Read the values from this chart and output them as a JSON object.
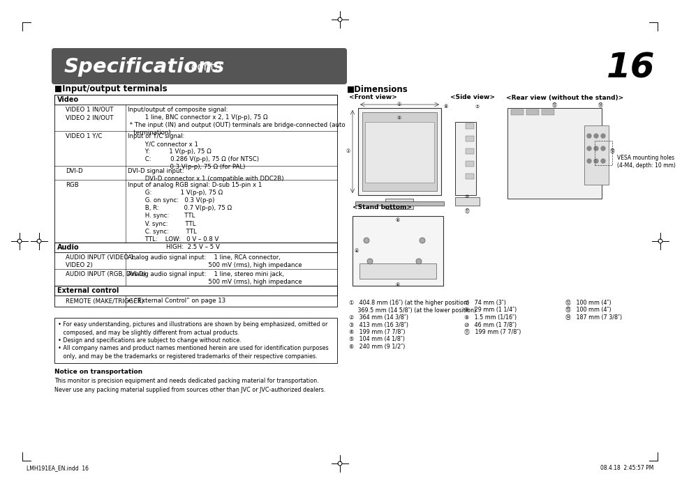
{
  "title_bold": "Specifications",
  "title_light": " (cont.)",
  "page_number": "16",
  "section1_title": "■Input/output terminals",
  "section2_title": "■Dimensions",
  "header_bg": "#555555",
  "header_text_color": "#ffffff",
  "bg_color": "#ffffff",
  "table_border_color": "#000000",
  "body_text_color": "#000000",
  "video_rows": [
    {
      "col1": "VIDEO 1 IN/OUT\nVIDEO 2 IN/OUT",
      "col2": "Input/output of composite signal:\n         1 line, BNC connector x 2, 1 V(p-p), 75 Ω\n * The input (IN) and output (OUT) terminals are bridge-connected (auto\n   termination)."
    },
    {
      "col1": "VIDEO 1 Y/C",
      "col2": "Input of Y/C signal:\n         Y/C connector x 1\n         Y:          1 V(p-p), 75 Ω\n         C:          0.286 V(p-p), 75 Ω (for NTSC)\n                      0.3 V(p-p), 75 Ω (for PAL)"
    },
    {
      "col1": "DVI-D",
      "col2": "DVI-D signal input:\n         DVI-D connector x 1 (compatible with DDC2B)"
    },
    {
      "col1": "RGB",
      "col2": "Input of analog RGB signal: D-sub 15-pin x 1\n         G:               1 V(p-p), 75 Ω\n         G. on sync:   0.3 V(p-p)\n         B, R:             0.7 V(p-p), 75 Ω\n         H. sync:        TTL\n         V. sync:         TTL\n         C. sync:         TTL\n         TTL:    LOW:   0 V – 0.8 V\n                    HIGH:  2.5 V – 5 V"
    }
  ],
  "audio_rows": [
    {
      "col1": "AUDIO INPUT (VIDEO 1,\nVIDEO 2)",
      "col2": "Analog audio signal input:    1 line, RCA connector,\n                                          500 mV (rms), high impedance"
    },
    {
      "col1": "AUDIO INPUT (RGB, DVI-D)",
      "col2": "Analog audio signal input:    1 line, stereo mini jack,\n                                          500 mV (rms), high impedance"
    }
  ],
  "ext_row": {
    "col1": "REMOTE (MAKE/TRIGGER)",
    "col2": "↵ “External Control” on page 13"
  },
  "dims_front_view": "<Front view>",
  "dims_side_view": "<Side view>",
  "dims_rear_view": "<Rear view (without the stand)>",
  "dims_stand_bottom": "<Stand bottom>",
  "vesa_text": "VESA mounting holes\n(4-M4, depth: 10 mm)",
  "dim_notes_col1": [
    "①   404.8 mm (16″) (at the higher position)",
    "     369.5 mm (14 5/8″) (at the lower position)",
    "②   364 mm (14 3/8″)",
    "③   413 mm (16 3/8″)",
    "④   199 mm (7 7/8″)",
    "⑤   104 mm (4 1/8″)",
    "⑥   240 mm (9 1/2″)"
  ],
  "dim_notes_col2": [
    "⑦   74 mm (3″)",
    "⑧   29 mm (1 1/4″)",
    "⑨   1.5 mm (1/16″)",
    "⑩   46 mm (1 7/8″)",
    "⑪   199 mm (7 7/8″)"
  ],
  "dim_notes_col3": [
    "⑫   100 mm (4″)",
    "⑬   100 mm (4″)",
    "⑭   187 mm (7 3/8″)"
  ],
  "footer_notes": [
    "• For easy understanding, pictures and illustrations are shown by being emphasized, omitted or",
    "   composed, and may be slightly different from actual products.",
    "• Design and specifications are subject to change without notice.",
    "• All company names and product names mentioned herein are used for identification purposes",
    "   only, and may be the trademarks or registered trademarks of their respective companies."
  ],
  "notice_title": "Notice on transportation",
  "notice_text": "This monitor is precision equipment and needs dedicated packing material for transportation.\nNever use any packing material supplied from sources other than JVC or JVC-authorized dealers.",
  "bottom_left_text": "LMH191EA_EN.indd  16",
  "bottom_right_text": "08.4.18  2:45:57 PM"
}
